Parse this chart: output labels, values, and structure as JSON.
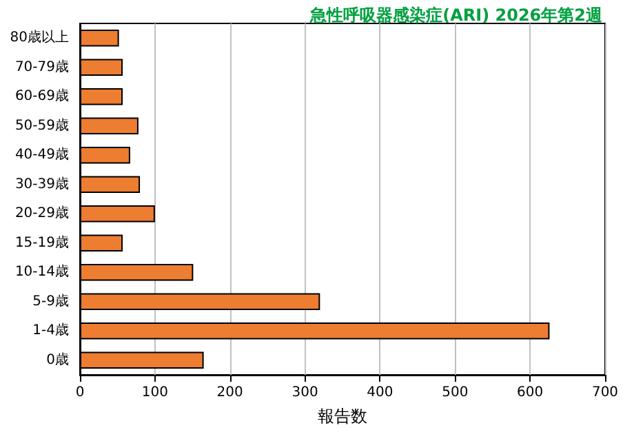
{
  "chart_data": {
    "type": "bar",
    "orientation": "horizontal",
    "title": "急性呼吸器感染症(ARI) 2026年第2週",
    "xlabel": "報告数",
    "categories": [
      "80歳以上",
      "70-79歳",
      "60-69歳",
      "50-59歳",
      "40-49歳",
      "30-39歳",
      "20-29歳",
      "15-19歳",
      "10-14歳",
      "5-9歳",
      "1-4歳",
      "0歳"
    ],
    "values": [
      52,
      57,
      57,
      78,
      67,
      80,
      100,
      57,
      151,
      320,
      626,
      165
    ],
    "color": "#ed7d31",
    "xlim": [
      0,
      700
    ],
    "xticks": [
      0,
      100,
      200,
      300,
      400,
      500,
      600,
      700
    ],
    "grid": "x"
  }
}
